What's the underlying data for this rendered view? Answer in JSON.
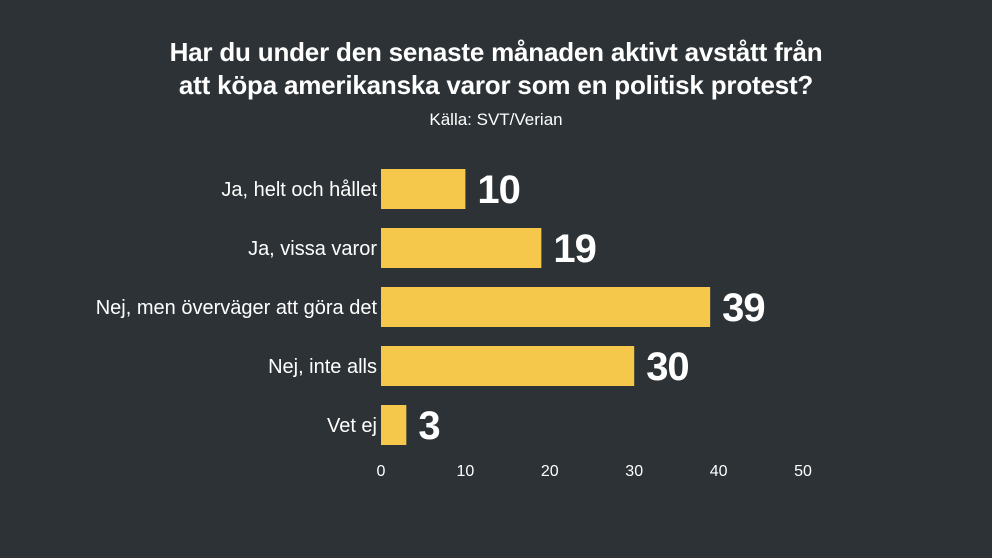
{
  "colors": {
    "background": "#2c3235",
    "bar": "#f5c84c",
    "text": "#ffffff"
  },
  "chart_data": {
    "type": "bar",
    "orientation": "horizontal",
    "title_lines": [
      "Har du under den senaste månaden aktivt avstått från",
      "att köpa amerikanska varor som en politisk protest?"
    ],
    "source": "Källa: SVT/Verian",
    "categories": [
      "Ja, helt och hållet",
      "Ja, vissa varor",
      "Nej, men överväger att göra det",
      "Nej, inte alls",
      "Vet ej"
    ],
    "values": [
      10,
      19,
      39,
      30,
      3
    ],
    "xlim": [
      0,
      50
    ],
    "xticks": [
      0,
      10,
      20,
      30,
      40,
      50
    ],
    "xlabel": "",
    "ylabel": "",
    "grid": false,
    "legend": "none"
  }
}
